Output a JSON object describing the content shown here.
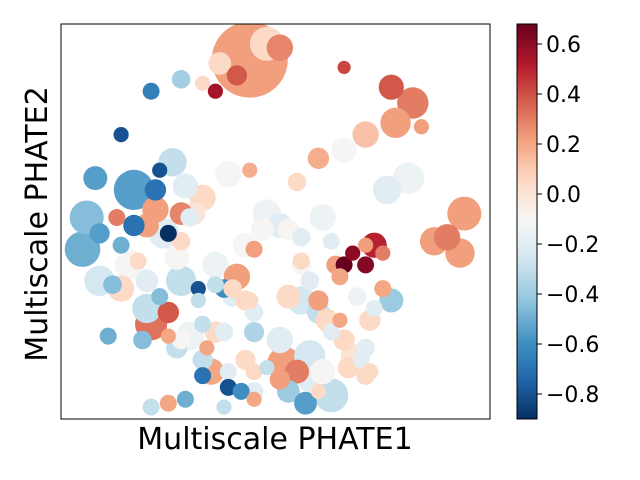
{
  "chart_data": {
    "type": "scatter",
    "title": "",
    "xlabel": "Multiscale PHATE1",
    "ylabel": "Multiscale PHATE2",
    "x_ticks_visible": false,
    "y_ticks_visible": false,
    "xlim": [
      0,
      100
    ],
    "ylim": [
      0,
      100
    ],
    "grid": false,
    "colormap": "RdBu_r",
    "colorbar": {
      "position": "right",
      "range": [
        -0.9,
        0.68
      ],
      "ticks": [
        -0.8,
        -0.6,
        -0.4,
        -0.2,
        0.0,
        0.2,
        0.4,
        0.6
      ],
      "tick_labels": [
        "−0.8",
        "−0.6",
        "−0.4",
        "−0.2",
        "0.0",
        "0.2",
        "0.4",
        "0.6"
      ]
    },
    "points_columns": [
      "x",
      "y",
      "size",
      "value"
    ],
    "points": [
      [
        44,
        91,
        100,
        0.22
      ],
      [
        48,
        95,
        20,
        0.05
      ],
      [
        51,
        94,
        12,
        0.28
      ],
      [
        37,
        90,
        9,
        0.05
      ],
      [
        41,
        87,
        7,
        0.38
      ],
      [
        28,
        86,
        6,
        -0.38
      ],
      [
        21,
        83,
        5,
        -0.65
      ],
      [
        36,
        83,
        4,
        0.55
      ],
      [
        33,
        85,
        4,
        0.05
      ],
      [
        66,
        89,
        3,
        0.42
      ],
      [
        77,
        84,
        11,
        0.38
      ],
      [
        82,
        80,
        17,
        0.3
      ],
      [
        78,
        75,
        16,
        0.22
      ],
      [
        84,
        74,
        4,
        0.22
      ],
      [
        71,
        72,
        12,
        0.12
      ],
      [
        66,
        68,
        11,
        -0.1
      ],
      [
        60,
        66,
        8,
        0.18
      ],
      [
        14,
        72,
        4,
        -0.8
      ],
      [
        26,
        65,
        14,
        -0.3
      ],
      [
        8,
        61,
        10,
        -0.55
      ],
      [
        17,
        58,
        28,
        -0.55
      ],
      [
        22,
        58,
        8,
        -0.7
      ],
      [
        23,
        63,
        4,
        -0.8
      ],
      [
        29,
        59,
        11,
        -0.2
      ],
      [
        33,
        56,
        12,
        0.05
      ],
      [
        31,
        52,
        9,
        0.0
      ],
      [
        39,
        62,
        12,
        -0.1
      ],
      [
        44,
        63,
        4,
        0.18
      ],
      [
        55,
        60,
        6,
        0.05
      ],
      [
        76,
        58,
        14,
        -0.2
      ],
      [
        81,
        61,
        17,
        -0.15
      ],
      [
        94,
        52,
        20,
        0.22
      ],
      [
        87,
        45,
        14,
        0.22
      ],
      [
        90,
        46,
        12,
        0.3
      ],
      [
        93,
        42,
        15,
        0.22
      ],
      [
        6,
        51,
        20,
        -0.45
      ],
      [
        9,
        47,
        7,
        -0.55
      ],
      [
        5,
        43,
        22,
        -0.5
      ],
      [
        13,
        51,
        5,
        0.3
      ],
      [
        14,
        44,
        5,
        -0.5
      ],
      [
        17,
        49,
        8,
        -0.7
      ],
      [
        16,
        39,
        15,
        -0.1
      ],
      [
        22,
        53,
        12,
        0.22
      ],
      [
        20,
        49,
        10,
        0.22
      ],
      [
        24,
        47,
        16,
        -0.2
      ],
      [
        28,
        52,
        9,
        0.28
      ],
      [
        25,
        47,
        5,
        -0.9
      ],
      [
        30,
        51,
        6,
        -0.2
      ],
      [
        28,
        45,
        6,
        0.05
      ],
      [
        27,
        41,
        11,
        -0.1
      ],
      [
        9,
        35,
        16,
        -0.25
      ],
      [
        12,
        34,
        6,
        -0.45
      ],
      [
        14,
        33,
        12,
        0.05
      ],
      [
        20,
        35,
        9,
        -0.2
      ],
      [
        18,
        40,
        5,
        0.05
      ],
      [
        20,
        28,
        15,
        -0.3
      ],
      [
        23,
        31,
        5,
        -0.45
      ],
      [
        28,
        35,
        16,
        -0.3
      ],
      [
        21,
        24,
        18,
        0.32
      ],
      [
        25,
        27,
        8,
        0.38
      ],
      [
        28,
        20,
        6,
        -0.1
      ],
      [
        30,
        21,
        14,
        -0.15
      ],
      [
        27,
        18,
        8,
        -0.3
      ],
      [
        25,
        21,
        4,
        0.2
      ],
      [
        19,
        20,
        6,
        -0.45
      ],
      [
        11,
        21,
        5,
        -0.5
      ],
      [
        33,
        24,
        5,
        -0.3
      ],
      [
        36,
        22,
        8,
        0.05
      ],
      [
        38,
        22,
        6,
        -0.2
      ],
      [
        34,
        18,
        4,
        0.2
      ],
      [
        33,
        15,
        7,
        -0.3
      ],
      [
        35,
        12,
        12,
        0.2
      ],
      [
        39,
        12,
        5,
        -0.2
      ],
      [
        43,
        15,
        7,
        0.05
      ],
      [
        32,
        33,
        4,
        -0.8
      ],
      [
        32,
        30,
        4,
        -0.3
      ],
      [
        36,
        34,
        5,
        -0.3
      ],
      [
        36,
        39,
        12,
        -0.15
      ],
      [
        38,
        33,
        6,
        -0.6
      ],
      [
        40,
        33,
        6,
        0.05
      ],
      [
        41,
        36,
        12,
        0.22
      ],
      [
        44,
        30,
        5,
        0.05
      ],
      [
        45,
        27,
        6,
        -0.2
      ],
      [
        45,
        22,
        7,
        -0.35
      ],
      [
        43,
        44,
        11,
        -0.1
      ],
      [
        45,
        43,
        5,
        0.22
      ],
      [
        47,
        48,
        9,
        -0.1
      ],
      [
        48,
        52,
        14,
        -0.15
      ],
      [
        51,
        49,
        11,
        -0.2
      ],
      [
        53,
        48,
        8,
        -0.1
      ],
      [
        56,
        46,
        6,
        -0.2
      ],
      [
        56,
        40,
        5,
        0.05
      ],
      [
        56,
        30,
        14,
        -0.25
      ],
      [
        53,
        31,
        10,
        0.05
      ],
      [
        51,
        20,
        12,
        -0.2
      ],
      [
        52,
        14,
        20,
        0.22
      ],
      [
        55,
        12,
        10,
        0.3
      ],
      [
        58,
        16,
        17,
        -0.25
      ],
      [
        58,
        10,
        11,
        -0.2
      ],
      [
        61,
        12,
        11,
        -0.1
      ],
      [
        63,
        22,
        5,
        -0.2
      ],
      [
        66,
        20,
        8,
        0.05
      ],
      [
        68,
        16,
        10,
        0.0
      ],
      [
        70,
        15,
        5,
        -0.2
      ],
      [
        72,
        12,
        5,
        0.05
      ],
      [
        63,
        6,
        20,
        -0.3
      ],
      [
        60,
        7,
        4,
        0.05
      ],
      [
        53,
        7,
        9,
        -0.4
      ],
      [
        57,
        4,
        9,
        -0.55
      ],
      [
        51,
        10,
        7,
        0.22
      ],
      [
        39,
        8,
        5,
        -0.8
      ],
      [
        42,
        7,
        5,
        -0.6
      ],
      [
        45,
        7,
        6,
        -0.2
      ],
      [
        45,
        12,
        5,
        0.05
      ],
      [
        45,
        5,
        4,
        0.2
      ],
      [
        48,
        13,
        4,
        -0.3
      ],
      [
        38,
        3,
        4,
        -0.3
      ],
      [
        33,
        11,
        5,
        -0.7
      ],
      [
        29,
        5,
        5,
        -0.5
      ],
      [
        25,
        4,
        5,
        0.2
      ],
      [
        21,
        3,
        5,
        -0.3
      ],
      [
        60,
        30,
        7,
        0.22
      ],
      [
        60,
        27,
        9,
        -0.3
      ],
      [
        62,
        25,
        9,
        0.05
      ],
      [
        65,
        25,
        4,
        0.2
      ],
      [
        68,
        42,
        4,
        0.6
      ],
      [
        71,
        39,
        5,
        0.62
      ],
      [
        66,
        39,
        5,
        0.75
      ],
      [
        73,
        44,
        11,
        0.5
      ],
      [
        71,
        44,
        4,
        0.22
      ],
      [
        75,
        42,
        4,
        0.3
      ],
      [
        75,
        33,
        5,
        0.2
      ],
      [
        77,
        30,
        10,
        -0.4
      ],
      [
        73,
        28,
        5,
        -0.2
      ],
      [
        69,
        31,
        6,
        -0.15
      ],
      [
        72,
        25,
        8,
        0.05
      ],
      [
        71,
        18,
        6,
        -0.2
      ],
      [
        67,
        13,
        8,
        0.05
      ],
      [
        71,
        11,
        6,
        0.05
      ],
      [
        61,
        51,
        12,
        -0.15
      ],
      [
        63,
        45,
        5,
        -0.2
      ],
      [
        64,
        39,
        6,
        0.22
      ],
      [
        56,
        39,
        7,
        -0.1
      ],
      [
        40,
        31,
        7,
        -0.2
      ],
      [
        43,
        30,
        7,
        0.05
      ],
      [
        65,
        36,
        5,
        0.2
      ],
      [
        58,
        35,
        6,
        -0.2
      ]
    ]
  }
}
